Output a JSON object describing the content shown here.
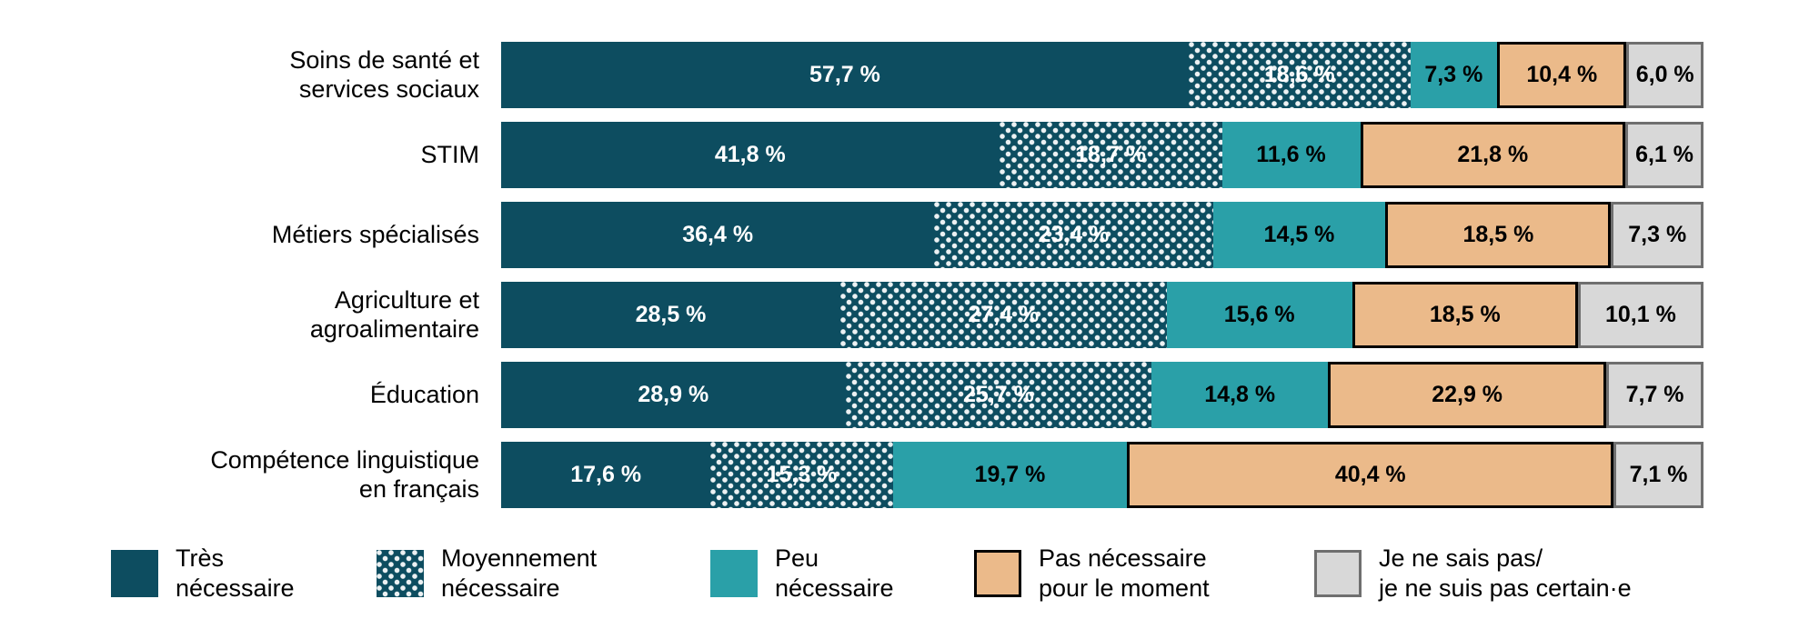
{
  "chart_data": {
    "type": "bar",
    "orientation": "horizontal",
    "stacked": true,
    "unit": "%",
    "xlim": [
      0,
      100
    ],
    "grid": false,
    "legend_position": "bottom",
    "categories": [
      "Soins de santé et\nservices sociaux",
      "STIM",
      "Métiers spécialisés",
      "Agriculture et\nagroalimentaire",
      "Éducation",
      "Compétence linguistique\nen français"
    ],
    "series": [
      {
        "id": "tres-necessaire",
        "name": "Très nécessaire",
        "legend_label": "Très\nnécessaire",
        "color": "#0d4d60",
        "pattern": "solid",
        "text_color": "#ffffff",
        "values": [
          57.7,
          41.8,
          36.4,
          28.5,
          28.9,
          17.6
        ],
        "labels": [
          "57,7 %",
          "41,8 %",
          "36,4 %",
          "28,5 %",
          "28,9 %",
          "17,6 %"
        ]
      },
      {
        "id": "moyennement-necessaire",
        "name": "Moyennement nécessaire",
        "legend_label": "Moyennement\nnécessaire",
        "color": "#0d4d60",
        "pattern": "dots",
        "text_color": "#ffffff",
        "values": [
          18.6,
          18.7,
          23.4,
          27.4,
          25.7,
          15.3
        ],
        "labels": [
          "18,6 %",
          "18,7 %",
          "23,4 %",
          "27,4 %",
          "25,7 %",
          "15,3 %"
        ]
      },
      {
        "id": "peu-necessaire",
        "name": "Peu nécessaire",
        "legend_label": "Peu\nnécessaire",
        "color": "#2aa0a8",
        "pattern": "solid",
        "text_color": "#000000",
        "values": [
          7.3,
          11.6,
          14.5,
          15.6,
          14.8,
          19.7
        ],
        "labels": [
          "7,3 %",
          "11,6 %",
          "14,5 %",
          "15,6 %",
          "14,8 %",
          "19,7 %"
        ]
      },
      {
        "id": "pas-necessaire-pour-le-moment",
        "name": "Pas nécessaire pour le moment",
        "legend_label": "Pas nécessaire\npour le moment",
        "color": "#ebba8a",
        "border_color": "#000000",
        "pattern": "solid",
        "text_color": "#000000",
        "values": [
          10.4,
          21.8,
          18.5,
          18.5,
          22.9,
          40.4
        ],
        "labels": [
          "10,4 %",
          "21,8 %",
          "18,5 %",
          "18,5 %",
          "22,9 %",
          "40,4 %"
        ]
      },
      {
        "id": "je-ne-sais-pas",
        "name": "Je ne sais pas/ je ne suis pas certain·e",
        "legend_label": "Je ne sais pas/\nje ne suis pas certain·e",
        "color": "#d8d8d8",
        "border_color": "#6f6f6f",
        "pattern": "solid",
        "text_color": "#000000",
        "values": [
          6.0,
          6.1,
          7.3,
          10.1,
          7.7,
          7.1
        ],
        "labels": [
          "6,0 %",
          "6,1 %",
          "7,3 %",
          "10,1 %",
          "7,7 %",
          "7,1 %"
        ]
      }
    ]
  }
}
